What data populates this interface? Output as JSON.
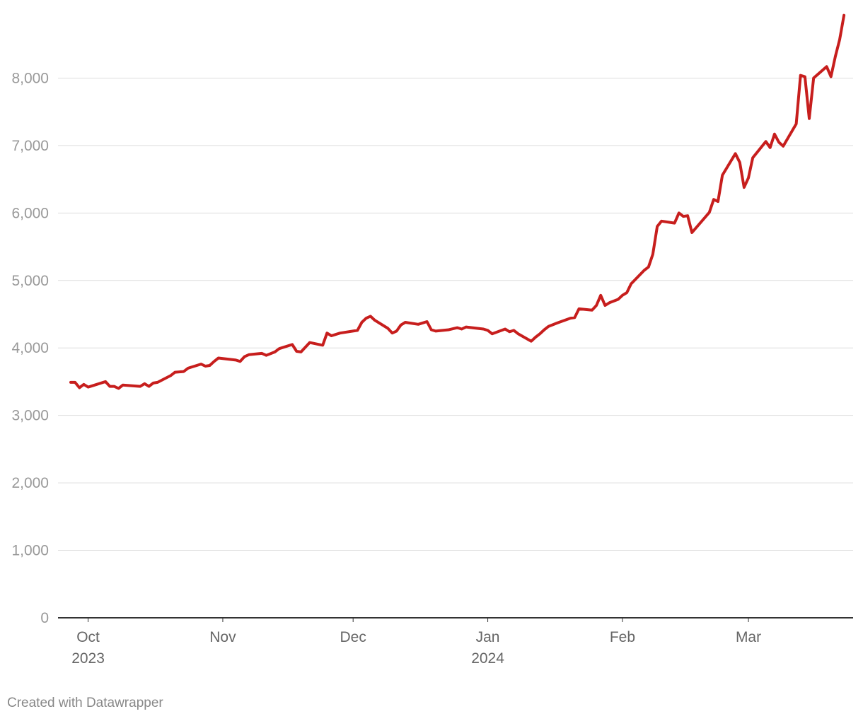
{
  "chart_data": {
    "type": "line",
    "title": "",
    "xlabel": "",
    "ylabel": "",
    "ylim": [
      0,
      9000
    ],
    "yticks": [
      0,
      1000,
      2000,
      3000,
      4000,
      5000,
      6000,
      7000,
      8000
    ],
    "ytick_labels": [
      "0",
      "1,000",
      "2,000",
      "3,000",
      "4,000",
      "5,000",
      "6,000",
      "7,000",
      "8,000"
    ],
    "xlim": [
      "2023-09-27",
      "2024-03-22"
    ],
    "xticks": [
      {
        "date": "2023-10-01",
        "label": "Oct",
        "sublabel": "2023"
      },
      {
        "date": "2023-11-01",
        "label": "Nov",
        "sublabel": ""
      },
      {
        "date": "2023-12-01",
        "label": "Dec",
        "sublabel": ""
      },
      {
        "date": "2024-01-01",
        "label": "Jan",
        "sublabel": "2024"
      },
      {
        "date": "2024-02-01",
        "label": "Feb",
        "sublabel": ""
      },
      {
        "date": "2024-03-01",
        "label": "Mar",
        "sublabel": ""
      }
    ],
    "grid": true,
    "line_color": "#c71e1d",
    "series": [
      {
        "points": [
          [
            "2023-09-27",
            3490
          ],
          [
            "2023-09-28",
            3490
          ],
          [
            "2023-09-29",
            3410
          ],
          [
            "2023-09-30",
            3460
          ],
          [
            "2023-10-01",
            3420
          ],
          [
            "2023-10-03",
            3460
          ],
          [
            "2023-10-05",
            3500
          ],
          [
            "2023-10-06",
            3430
          ],
          [
            "2023-10-07",
            3430
          ],
          [
            "2023-10-08",
            3400
          ],
          [
            "2023-10-09",
            3450
          ],
          [
            "2023-10-13",
            3430
          ],
          [
            "2023-10-14",
            3470
          ],
          [
            "2023-10-15",
            3430
          ],
          [
            "2023-10-16",
            3480
          ],
          [
            "2023-10-17",
            3490
          ],
          [
            "2023-10-20",
            3590
          ],
          [
            "2023-10-21",
            3640
          ],
          [
            "2023-10-23",
            3650
          ],
          [
            "2023-10-24",
            3700
          ],
          [
            "2023-10-27",
            3760
          ],
          [
            "2023-10-28",
            3730
          ],
          [
            "2023-10-29",
            3740
          ],
          [
            "2023-10-30",
            3800
          ],
          [
            "2023-10-31",
            3850
          ],
          [
            "2023-11-04",
            3820
          ],
          [
            "2023-11-05",
            3800
          ],
          [
            "2023-11-06",
            3870
          ],
          [
            "2023-11-07",
            3900
          ],
          [
            "2023-11-10",
            3920
          ],
          [
            "2023-11-11",
            3890
          ],
          [
            "2023-11-13",
            3940
          ],
          [
            "2023-11-14",
            3990
          ],
          [
            "2023-11-17",
            4050
          ],
          [
            "2023-11-18",
            3950
          ],
          [
            "2023-11-19",
            3940
          ],
          [
            "2023-11-21",
            4080
          ],
          [
            "2023-11-24",
            4040
          ],
          [
            "2023-11-25",
            4220
          ],
          [
            "2023-11-26",
            4180
          ],
          [
            "2023-11-28",
            4220
          ],
          [
            "2023-12-02",
            4260
          ],
          [
            "2023-12-03",
            4380
          ],
          [
            "2023-12-04",
            4440
          ],
          [
            "2023-12-05",
            4470
          ],
          [
            "2023-12-06",
            4410
          ],
          [
            "2023-12-09",
            4290
          ],
          [
            "2023-12-10",
            4220
          ],
          [
            "2023-12-11",
            4250
          ],
          [
            "2023-12-12",
            4340
          ],
          [
            "2023-12-13",
            4380
          ],
          [
            "2023-12-16",
            4350
          ],
          [
            "2023-12-18",
            4390
          ],
          [
            "2023-12-19",
            4270
          ],
          [
            "2023-12-20",
            4250
          ],
          [
            "2023-12-23",
            4270
          ],
          [
            "2023-12-25",
            4300
          ],
          [
            "2023-12-26",
            4280
          ],
          [
            "2023-12-27",
            4310
          ],
          [
            "2023-12-31",
            4280
          ],
          [
            "2024-01-01",
            4260
          ],
          [
            "2024-01-02",
            4210
          ],
          [
            "2024-01-05",
            4280
          ],
          [
            "2024-01-06",
            4240
          ],
          [
            "2024-01-07",
            4260
          ],
          [
            "2024-01-08",
            4210
          ],
          [
            "2024-01-11",
            4100
          ],
          [
            "2024-01-12",
            4160
          ],
          [
            "2024-01-13",
            4210
          ],
          [
            "2024-01-14",
            4270
          ],
          [
            "2024-01-15",
            4320
          ],
          [
            "2024-01-17",
            4370
          ],
          [
            "2024-01-20",
            4440
          ],
          [
            "2024-01-21",
            4450
          ],
          [
            "2024-01-22",
            4580
          ],
          [
            "2024-01-25",
            4560
          ],
          [
            "2024-01-26",
            4630
          ],
          [
            "2024-01-27",
            4780
          ],
          [
            "2024-01-28",
            4630
          ],
          [
            "2024-01-29",
            4670
          ],
          [
            "2024-01-31",
            4720
          ],
          [
            "2024-02-01",
            4780
          ],
          [
            "2024-02-02",
            4820
          ],
          [
            "2024-02-03",
            4950
          ],
          [
            "2024-02-06",
            5150
          ],
          [
            "2024-02-07",
            5200
          ],
          [
            "2024-02-08",
            5390
          ],
          [
            "2024-02-09",
            5800
          ],
          [
            "2024-02-10",
            5880
          ],
          [
            "2024-02-13",
            5850
          ],
          [
            "2024-02-14",
            6000
          ],
          [
            "2024-02-15",
            5950
          ],
          [
            "2024-02-16",
            5960
          ],
          [
            "2024-02-17",
            5710
          ],
          [
            "2024-02-21",
            6010
          ],
          [
            "2024-02-22",
            6200
          ],
          [
            "2024-02-23",
            6170
          ],
          [
            "2024-02-24",
            6560
          ],
          [
            "2024-02-27",
            6880
          ],
          [
            "2024-02-28",
            6750
          ],
          [
            "2024-02-29",
            6380
          ],
          [
            "2024-03-01",
            6520
          ],
          [
            "2024-03-02",
            6820
          ],
          [
            "2024-03-05",
            7060
          ],
          [
            "2024-03-06",
            6970
          ],
          [
            "2024-03-07",
            7170
          ],
          [
            "2024-03-08",
            7050
          ],
          [
            "2024-03-09",
            6990
          ],
          [
            "2024-03-12",
            7320
          ],
          [
            "2024-03-13",
            8040
          ],
          [
            "2024-03-14",
            8020
          ],
          [
            "2024-03-15",
            7400
          ],
          [
            "2024-03-16",
            8000
          ],
          [
            "2024-03-19",
            8170
          ],
          [
            "2024-03-20",
            8020
          ],
          [
            "2024-03-21",
            8320
          ],
          [
            "2024-03-22",
            8570
          ],
          [
            "2024-03-23",
            8930
          ]
        ]
      }
    ]
  },
  "footer": {
    "credit": "Created with Datawrapper"
  }
}
